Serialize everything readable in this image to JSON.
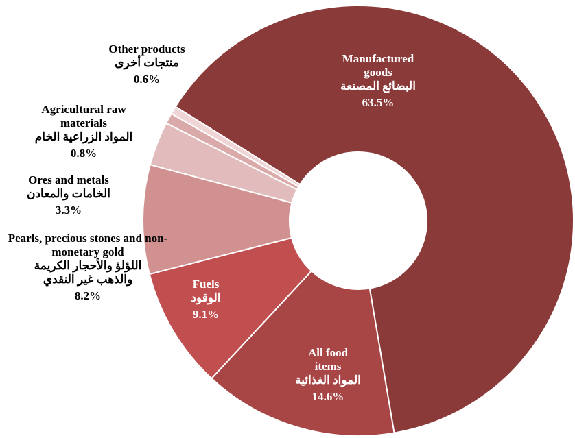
{
  "chart_data": {
    "type": "pie",
    "categories": [
      "Manufactured goods",
      "All food items",
      "Fuels",
      "Pearls, precious stones and non-monetary gold",
      "Ores and metals",
      "Agricultural raw materials",
      "Other products"
    ],
    "labels_ar": [
      "البضائع المصنعة",
      "المواد الغذائية",
      "الوقود",
      "اللؤلؤ والأحجار الكريمة والذهب  غير النقدي",
      "الخامات والمعادن",
      "المواد الزراعية الخام",
      "منتجات أخرى"
    ],
    "values": [
      63.5,
      14.6,
      9.1,
      8.2,
      3.3,
      0.8,
      0.6
    ],
    "value_labels": [
      "63.5%",
      "14.6%",
      "9.1%",
      "8.2%",
      "3.3%",
      "0.8%",
      "0.6%"
    ],
    "colors": [
      "#8b3a3a",
      "#a84545",
      "#c24f4f",
      "#d29191",
      "#e2bcbc",
      "#daa9a9",
      "#efd5d5"
    ],
    "donut": true
  }
}
